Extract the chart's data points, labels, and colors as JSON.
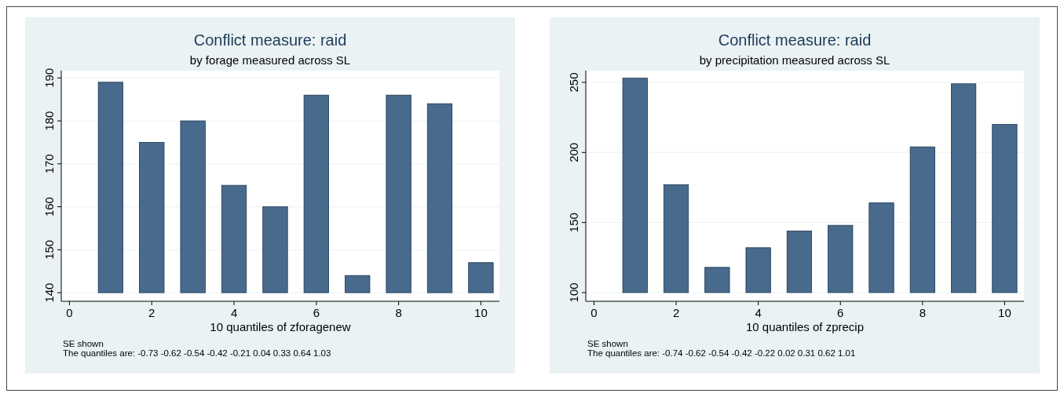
{
  "chart_data": [
    {
      "type": "bar",
      "title": "Conflict measure: raid",
      "subtitle": "by forage measured across SL",
      "xlabel": "10 quantiles of zforagenew",
      "x": [
        1,
        2,
        3,
        4,
        5,
        6,
        7,
        8,
        9,
        10
      ],
      "base": [
        140,
        140,
        140,
        140,
        140,
        140,
        140,
        140,
        140,
        140
      ],
      "values": [
        49,
        35,
        40,
        25,
        20,
        46,
        4,
        46,
        44,
        7
      ],
      "color": "#486a8c",
      "xlim": [
        -0.2,
        10.45
      ],
      "xticks": [
        0,
        2,
        4,
        6,
        8,
        10
      ],
      "ylim": [
        138,
        191.7
      ],
      "yticks": [
        140,
        150,
        160,
        170,
        180,
        190
      ],
      "grid": "y",
      "annotations": [
        "SE shown",
        "The quantiles are: -0.73 -0.62 -0.54 -0.42 -0.21 0.04 0.33 0.64 1.03"
      ]
    },
    {
      "type": "bar",
      "title": "Conflict measure: raid",
      "subtitle": "by precipitation measured across SL",
      "xlabel": "10 quantiles of zprecip",
      "x": [
        1,
        2,
        3,
        4,
        5,
        6,
        7,
        8,
        9,
        10
      ],
      "base": [
        100,
        100,
        100,
        100,
        100,
        100,
        100,
        100,
        100,
        100
      ],
      "values": [
        153,
        77,
        18,
        32,
        44,
        48,
        64,
        104,
        149,
        120
      ],
      "color": "#486a8c",
      "xlim": [
        -0.2,
        10.47
      ],
      "xticks": [
        0,
        2,
        4,
        6,
        8,
        10
      ],
      "ylim": [
        93.8,
        258.4
      ],
      "yticks": [
        100,
        150,
        200,
        250
      ],
      "grid": "y",
      "annotations": [
        "SE shown",
        "The quantiles are: -0.74 -0.62 -0.54 -0.42 -0.22 0.02 0.31 0.62 1.01"
      ]
    }
  ]
}
